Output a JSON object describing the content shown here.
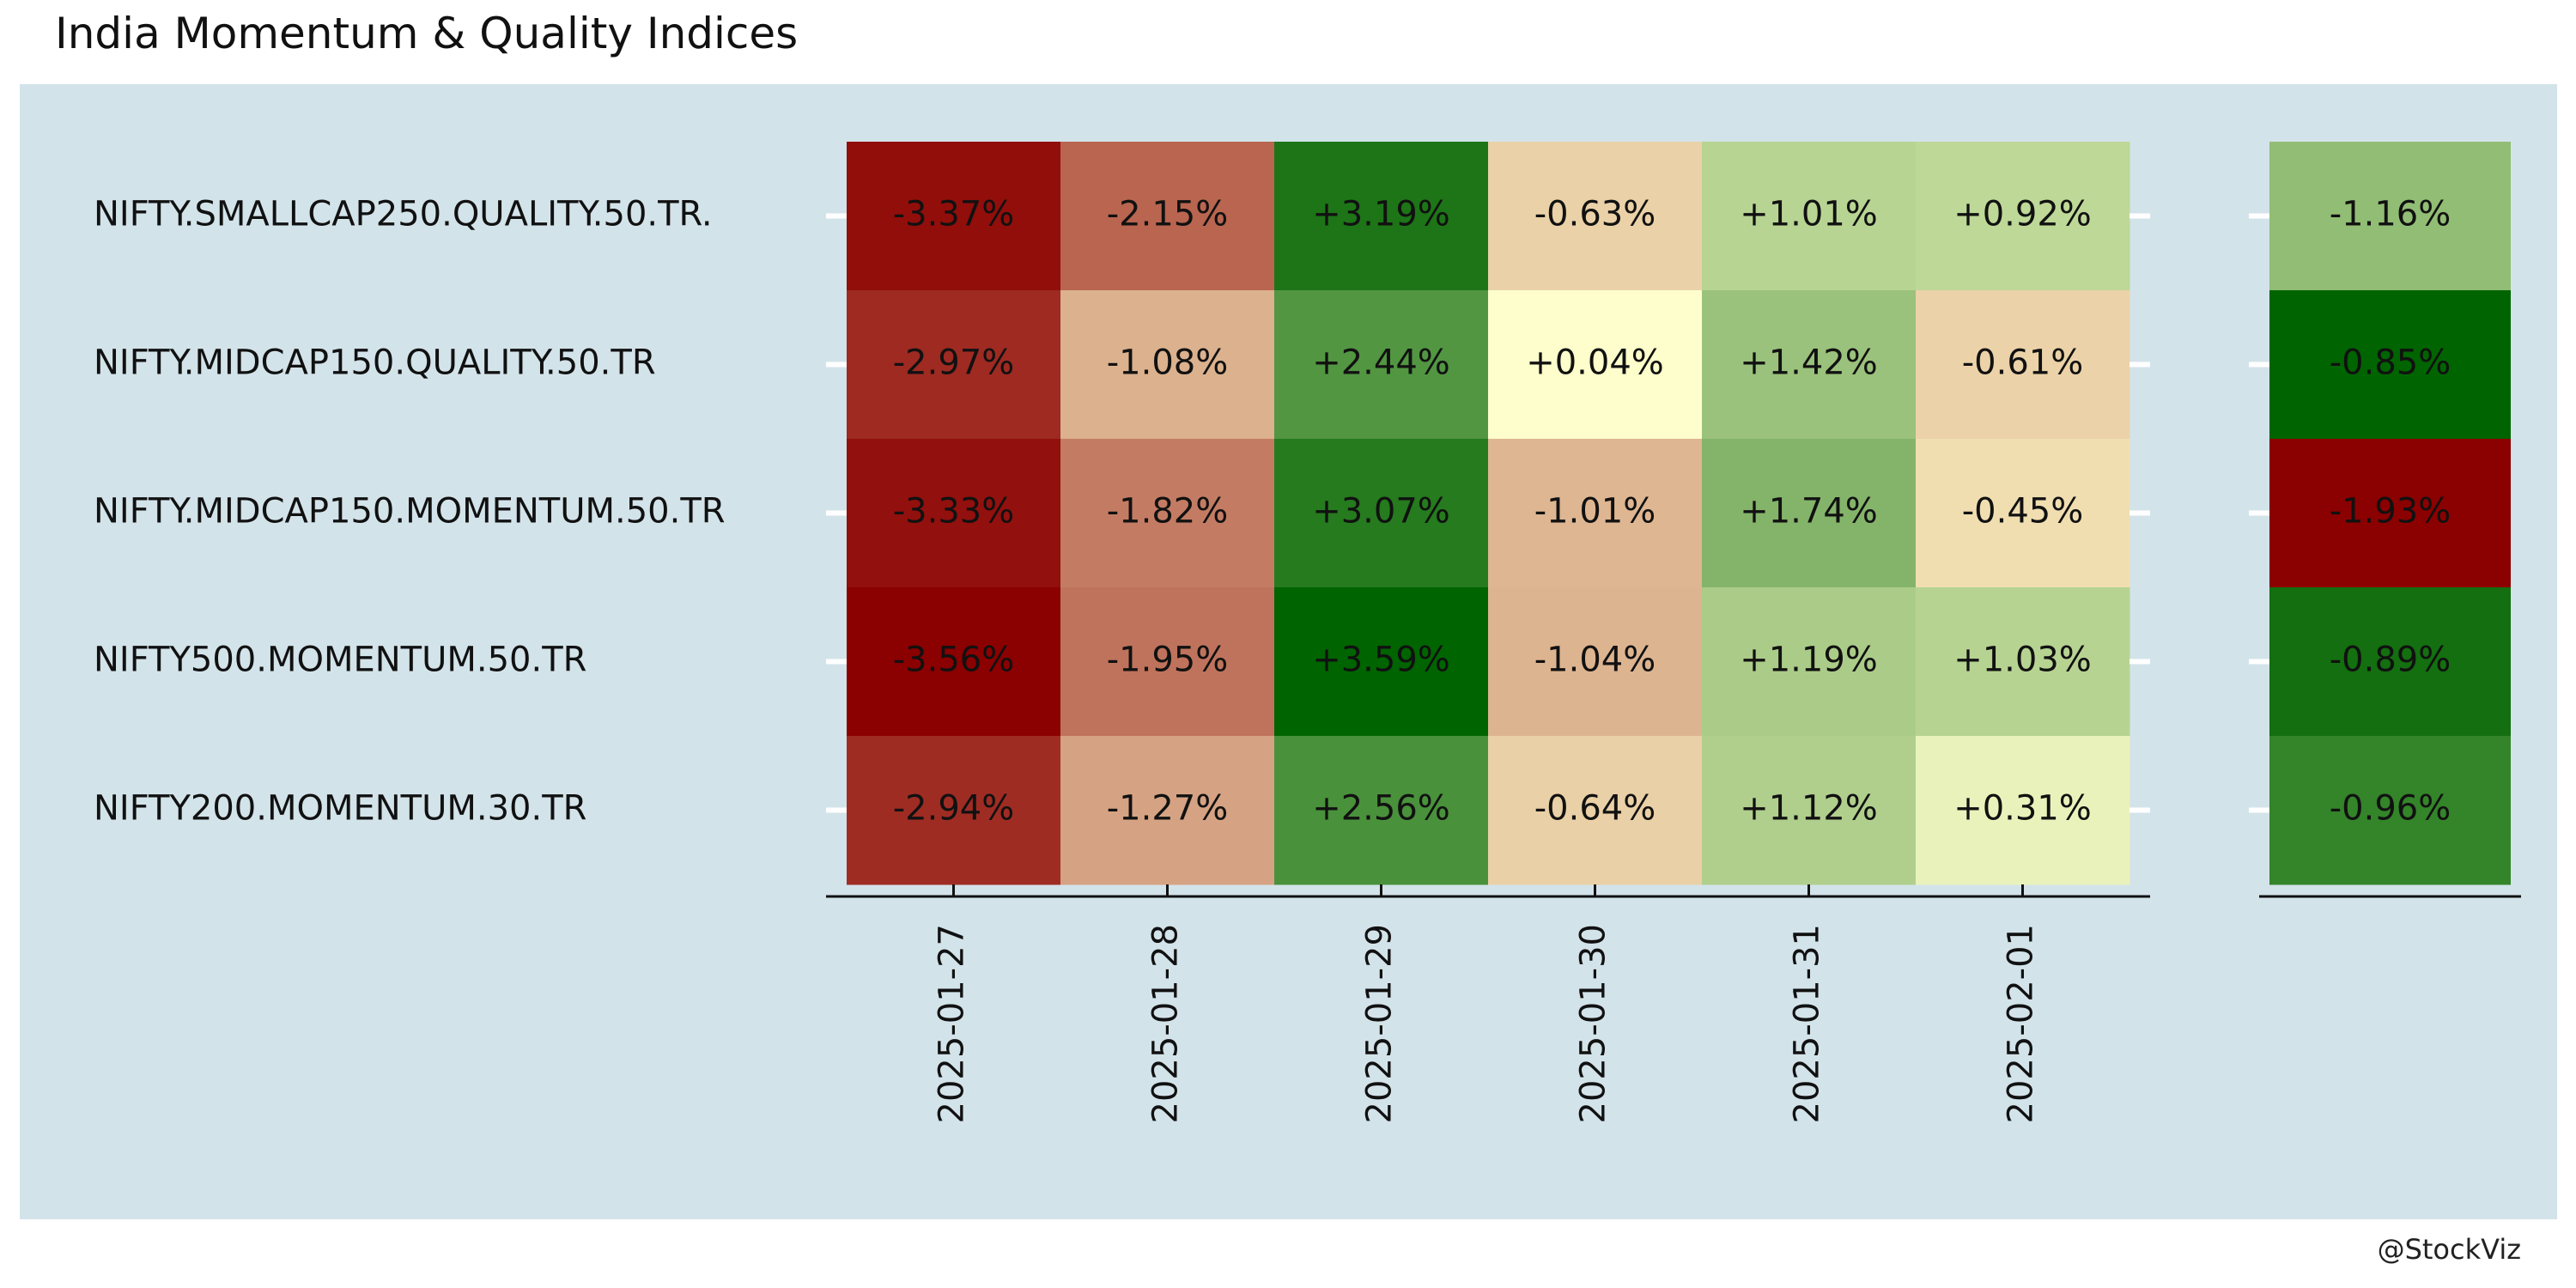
{
  "chart_data": {
    "type": "heatmap",
    "title": "India Momentum & Quality Indices",
    "rows": [
      "NIFTY.SMALLCAP250.QUALITY.50.TR.",
      "NIFTY.MIDCAP150.QUALITY.50.TR",
      "NIFTY.MIDCAP150.MOMENTUM.50.TR",
      "NIFTY500.MOMENTUM.50.TR",
      "NIFTY200.MOMENTUM.30.TR"
    ],
    "columns": [
      "2025-01-27",
      "2025-01-28",
      "2025-01-29",
      "2025-01-30",
      "2025-01-31",
      "2025-02-01"
    ],
    "values": [
      [
        -3.37,
        -2.15,
        3.19,
        -0.63,
        1.01,
        0.92
      ],
      [
        -2.97,
        -1.08,
        2.44,
        0.04,
        1.42,
        -0.61
      ],
      [
        -3.33,
        -1.82,
        3.07,
        -1.01,
        1.74,
        -0.45
      ],
      [
        -3.56,
        -1.95,
        3.59,
        -1.04,
        1.19,
        1.03
      ],
      [
        -2.94,
        -1.27,
        2.56,
        -0.64,
        1.12,
        0.31
      ]
    ],
    "labels": [
      [
        "-3.37%",
        "-2.15%",
        "+3.19%",
        "-0.63%",
        "+1.01%",
        "+0.92%"
      ],
      [
        "-2.97%",
        "-1.08%",
        "+2.44%",
        "+0.04%",
        "+1.42%",
        "-0.61%"
      ],
      [
        "-3.33%",
        "-1.82%",
        "+3.07%",
        "-1.01%",
        "+1.74%",
        "-0.45%"
      ],
      [
        "-3.56%",
        "-1.95%",
        "+3.59%",
        "-1.04%",
        "+1.19%",
        "+1.03%"
      ],
      [
        "-2.94%",
        "-1.27%",
        "+2.56%",
        "-0.64%",
        "+1.12%",
        "+0.31%"
      ]
    ],
    "summary_values": [
      -1.16,
      -0.85,
      -1.93,
      -0.89,
      -0.96
    ],
    "summary_labels": [
      "-1.16%",
      "-0.85%",
      "-1.93%",
      "-0.89%",
      "-0.96%"
    ],
    "color_scale": {
      "low": "#8b0000",
      "mid": "#ffffcc",
      "high": "#006400"
    }
  },
  "credit": "@StockViz"
}
